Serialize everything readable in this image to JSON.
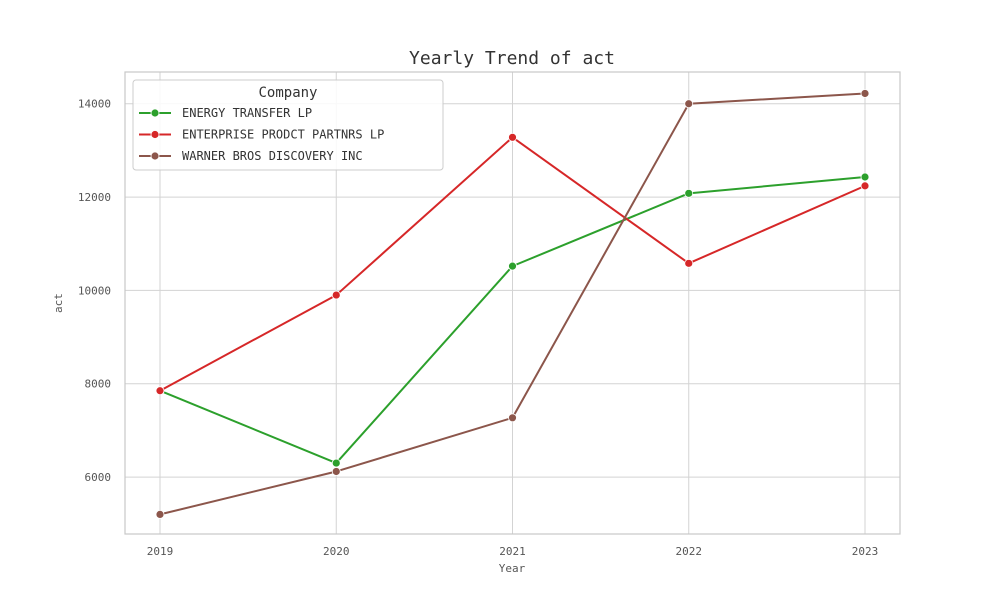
{
  "chart_data": {
    "type": "line",
    "title": "Yearly Trend of act",
    "xlabel": "Year",
    "ylabel": "act",
    "categories": [
      "2019",
      "2020",
      "2021",
      "2022",
      "2023"
    ],
    "yticks": [
      "6000",
      "8000",
      "10000",
      "12000",
      "14000"
    ],
    "ylim": [
      4780,
      14680
    ],
    "grid": true,
    "legend_title": "Company",
    "legend_position": "top-left",
    "series": [
      {
        "name": "ENERGY TRANSFER LP",
        "color": "#2ca02c",
        "values": [
          7850,
          6300,
          10520,
          12080,
          12430
        ]
      },
      {
        "name": "ENTERPRISE PRODCT PARTNRS LP",
        "color": "#d62728",
        "values": [
          7850,
          9900,
          13280,
          10580,
          12240
        ]
      },
      {
        "name": "WARNER BROS DISCOVERY INC",
        "color": "#8c564b",
        "values": [
          5200,
          6120,
          7270,
          14000,
          14220
        ]
      }
    ]
  }
}
